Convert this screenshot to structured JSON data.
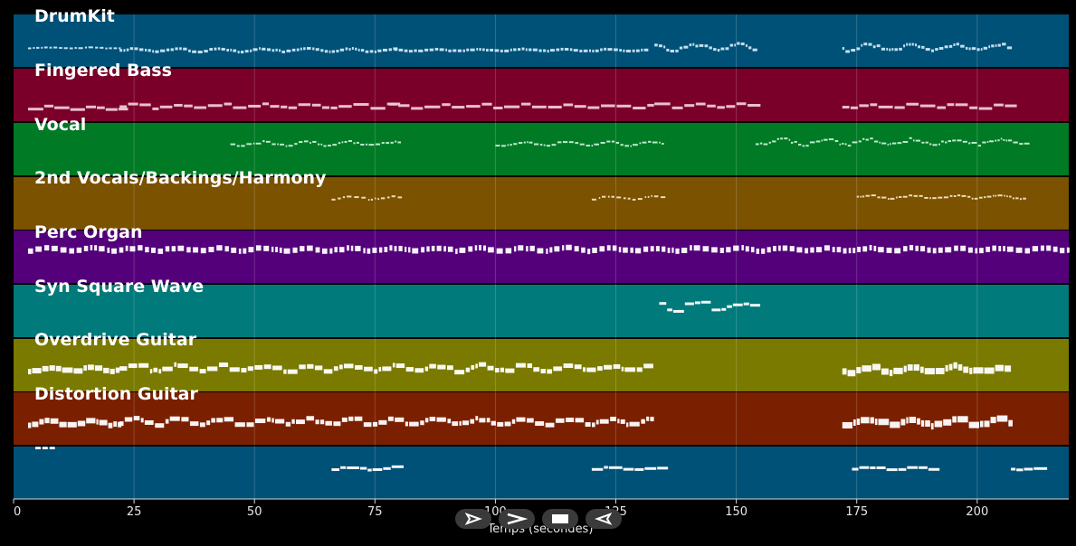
{
  "tracks": [
    {
      "name": "DrumKit",
      "color": "#005177"
    },
    {
      "name": "Fingered Bass",
      "color": "#7a002a"
    },
    {
      "name": "Vocal",
      "color": "#007a25"
    },
    {
      "name": "2nd Vocals/Backings/Harmony",
      "color": "#7a5200"
    },
    {
      "name": "Perc Organ",
      "color": "#54007a"
    },
    {
      "name": "Syn Square Wave",
      "color": "#007a7a"
    },
    {
      "name": "Overdrive Guitar",
      "color": "#7a7a00"
    },
    {
      "name": "Distortion Guitar",
      "color": "#7a2000"
    },
    {
      "name": "---",
      "color": "#005177"
    }
  ],
  "axis": {
    "ticks": [
      "0",
      "25",
      "50",
      "75",
      "100",
      "125",
      "150",
      "175",
      "200"
    ],
    "tick_values": [
      0,
      25,
      50,
      75,
      100,
      125,
      150,
      175,
      200
    ],
    "xlim": [
      0,
      219
    ],
    "xlabel": "Temps (secondes)"
  },
  "controls": [
    {
      "name": "play-outline-icon",
      "icon": "play-outline"
    },
    {
      "name": "forward-icon",
      "icon": "forward"
    },
    {
      "name": "stop-icon",
      "icon": "stop"
    },
    {
      "name": "rewind-icon",
      "icon": "rewind"
    }
  ]
}
